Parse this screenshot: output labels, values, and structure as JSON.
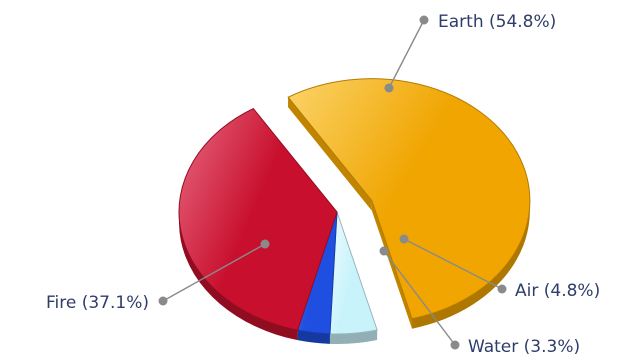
{
  "chart_data": {
    "type": "pie",
    "title": "",
    "legend": "none",
    "slices": [
      {
        "name": "Earth",
        "value": 54.8,
        "label": "Earth (54.8%)",
        "color": "#f0a500",
        "color_light": "#fbd46a",
        "exploded": true
      },
      {
        "name": "Air",
        "value": 4.8,
        "label": "Air (4.8%)",
        "color": "#c9f3fb",
        "color_light": "#eefcff",
        "exploded": false
      },
      {
        "name": "Water",
        "value": 3.3,
        "label": "Water (3.3%)",
        "color": "#1f4fe0",
        "color_light": "#4f7cff",
        "exploded": false
      },
      {
        "name": "Fire",
        "value": 37.1,
        "label": "Fire (37.1%)",
        "color": "#c8102e",
        "color_light": "#e86a82",
        "exploded": false
      }
    ]
  }
}
